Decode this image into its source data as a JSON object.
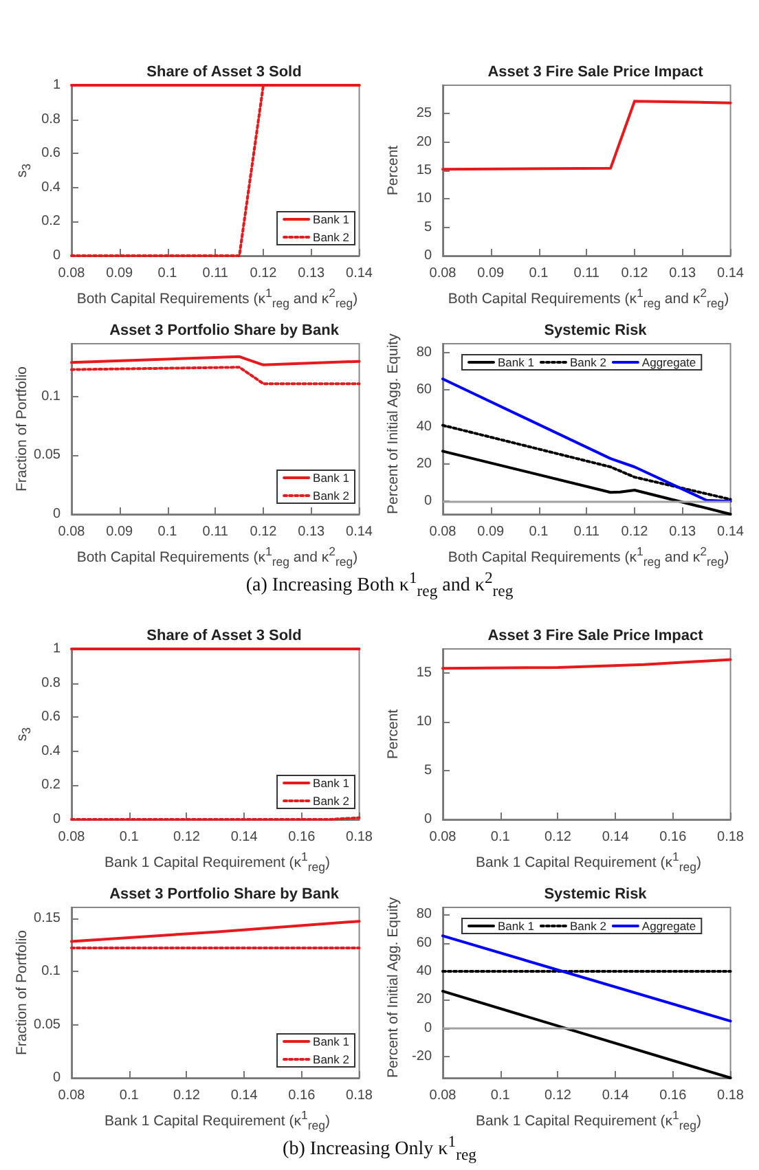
{
  "chart_data": [
    {
      "type": "line",
      "title": "Share of Asset 3 Sold",
      "xlabel": "Both Capital Requirements (κ$^{1}$$_{reg}$ and κ$^{2}$$_{reg}$)",
      "ylabel": "s$_{3}$",
      "xlim": [
        0.08,
        0.14
      ],
      "xticks": [
        0.08,
        0.09,
        0.1,
        0.11,
        0.12,
        0.13,
        0.14
      ],
      "ylim": [
        0,
        1
      ],
      "yticks": [
        0,
        0.2,
        0.4,
        0.6,
        0.8,
        1
      ],
      "marker": "none",
      "legend": "bottom right",
      "series": [
        {
          "name": "Bank 1",
          "color": "#e8191c",
          "line_style": "solid",
          "x": [
            0.08,
            0.115,
            0.12,
            0.14
          ],
          "values": [
            1,
            1,
            1,
            1
          ]
        },
        {
          "name": "Bank 2",
          "color": "#e8191c",
          "line_style": "dotted",
          "x": [
            0.08,
            0.115,
            0.12,
            0.14
          ],
          "values": [
            0,
            0,
            1,
            1
          ]
        }
      ]
    },
    {
      "type": "line",
      "title": "Asset 3 Fire Sale Price Impact",
      "xlabel": "Both Capital Requirements (κ$^{1}$$_{reg}$ and κ$^{2}$$_{reg}$)",
      "ylabel": "Percent",
      "xlim": [
        0.08,
        0.14
      ],
      "xticks": [
        0.08,
        0.09,
        0.1,
        0.11,
        0.12,
        0.13,
        0.14
      ],
      "ylim": [
        0,
        30
      ],
      "yticks": [
        0,
        5,
        10,
        15,
        20,
        25
      ],
      "marker": "none",
      "series": [
        {
          "color": "#e8191c",
          "line_style": "solid",
          "x": [
            0.08,
            0.115,
            0.12,
            0.14
          ],
          "values": [
            15.2,
            15.4,
            27.2,
            26.9
          ]
        }
      ]
    },
    {
      "type": "line",
      "title": "Asset 3 Portfolio Share by Bank",
      "xlabel": "Both Capital Requirements (κ$^{1}$$_{reg}$ and κ$^{2}$$_{reg}$)",
      "ylabel": "Fraction of Portfolio",
      "xlim": [
        0.08,
        0.14
      ],
      "xticks": [
        0.08,
        0.09,
        0.1,
        0.11,
        0.12,
        0.13,
        0.14
      ],
      "ylim": [
        0,
        0.145
      ],
      "yticks": [
        0,
        0.05,
        0.1
      ],
      "marker": "none",
      "legend": "bottom right",
      "series": [
        {
          "name": "Bank 1",
          "color": "#e8191c",
          "line_style": "solid",
          "x": [
            0.08,
            0.115,
            0.12,
            0.14
          ],
          "values": [
            0.129,
            0.134,
            0.127,
            0.13
          ]
        },
        {
          "name": "Bank 2",
          "color": "#e8191c",
          "line_style": "dotted",
          "x": [
            0.08,
            0.115,
            0.12,
            0.14
          ],
          "values": [
            0.123,
            0.125,
            0.111,
            0.111
          ]
        }
      ]
    },
    {
      "type": "line",
      "title": "Systemic Risk",
      "xlabel": "Both Capital Requirements (κ$^{1}$$_{reg}$ and κ$^{2}$$_{reg}$)",
      "ylabel": "Percent of Initial Agg. Equity",
      "xlim": [
        0.08,
        0.14
      ],
      "xticks": [
        0.08,
        0.09,
        0.1,
        0.11,
        0.12,
        0.13,
        0.14
      ],
      "ylim": [
        -7,
        85
      ],
      "yticks": [
        0,
        20,
        40,
        60,
        80
      ],
      "marker": "none",
      "legend": "top",
      "ref_lines": [
        {
          "axis": "y",
          "value": 0,
          "color": "#a0a0a0"
        }
      ],
      "annotations": [
        "(a) Increasing Both κ$^{1}$$_{reg}$ and κ$^{2}$$_{reg}$"
      ],
      "series": [
        {
          "name": "Bank 1",
          "color": "#000000",
          "line_style": "solid",
          "x": [
            0.08,
            0.115,
            0.117,
            0.12,
            0.14
          ],
          "values": [
            27,
            4.8,
            5,
            6,
            -7
          ]
        },
        {
          "name": "Bank 2",
          "color": "#000000",
          "line_style": "dotted",
          "x": [
            0.08,
            0.115,
            0.12,
            0.13,
            0.14
          ],
          "values": [
            41,
            18.5,
            13,
            7,
            1
          ]
        },
        {
          "name": "Aggregate",
          "color": "#0000ff",
          "line_style": "solid",
          "x": [
            0.08,
            0.115,
            0.12,
            0.13,
            0.135,
            0.14
          ],
          "values": [
            66,
            23,
            18.5,
            6.5,
            0.5,
            0
          ]
        }
      ]
    },
    {
      "type": "line",
      "title": "Share of Asset 3 Sold",
      "xlabel": "Bank 1 Capital Requirement (κ$^{1}$$_{reg}$)",
      "ylabel": "s$_{3}$",
      "xlim": [
        0.08,
        0.18
      ],
      "xticks": [
        0.08,
        0.1,
        0.12,
        0.14,
        0.16,
        0.18
      ],
      "ylim": [
        0,
        1
      ],
      "yticks": [
        0,
        0.2,
        0.4,
        0.6,
        0.8,
        1
      ],
      "marker": "none",
      "legend": "bottom right",
      "series": [
        {
          "name": "Bank 1",
          "color": "#e8191c",
          "line_style": "solid",
          "x": [
            0.08,
            0.18
          ],
          "values": [
            1,
            1
          ]
        },
        {
          "name": "Bank 2",
          "color": "#e8191c",
          "line_style": "dotted",
          "x": [
            0.08,
            0.17,
            0.18
          ],
          "values": [
            0,
            0,
            0.01
          ]
        }
      ]
    },
    {
      "type": "line",
      "title": "Asset 3 Fire Sale Price Impact",
      "xlabel": "Bank 1 Capital Requirement (κ$^{1}$$_{reg}$)",
      "ylabel": "Percent",
      "xlim": [
        0.08,
        0.18
      ],
      "xticks": [
        0.08,
        0.1,
        0.12,
        0.14,
        0.16,
        0.18
      ],
      "ylim": [
        0,
        17.5
      ],
      "yticks": [
        0,
        5,
        10,
        15
      ],
      "marker": "none",
      "series": [
        {
          "color": "#e8191c",
          "line_style": "solid",
          "x": [
            0.08,
            0.12,
            0.15,
            0.18
          ],
          "values": [
            15.5,
            15.6,
            15.9,
            16.4
          ]
        }
      ]
    },
    {
      "type": "line",
      "title": "Asset 3 Portfolio Share by Bank",
      "xlabel": "Bank 1 Capital Requirement (κ$^{1}$$_{reg}$)",
      "ylabel": "Fraction of Portfolio",
      "xlim": [
        0.08,
        0.18
      ],
      "xticks": [
        0.08,
        0.1,
        0.12,
        0.14,
        0.16,
        0.18
      ],
      "ylim": [
        0,
        0.16
      ],
      "yticks": [
        0,
        0.05,
        0.1,
        0.15
      ],
      "marker": "none",
      "legend": "bottom right",
      "series": [
        {
          "name": "Bank 1",
          "color": "#e8191c",
          "line_style": "solid",
          "x": [
            0.08,
            0.13,
            0.18
          ],
          "values": [
            0.128,
            0.137,
            0.147
          ]
        },
        {
          "name": "Bank 2",
          "color": "#e8191c",
          "line_style": "dotted",
          "x": [
            0.08,
            0.18
          ],
          "values": [
            0.122,
            0.122
          ]
        }
      ]
    },
    {
      "type": "line",
      "title": "Systemic Risk",
      "xlabel": "Bank 1 Capital Requirement (κ$^{1}$$_{reg}$)",
      "ylabel": "Percent of Initial Agg. Equity",
      "xlim": [
        0.08,
        0.18
      ],
      "xticks": [
        0.08,
        0.1,
        0.12,
        0.14,
        0.16,
        0.18
      ],
      "ylim": [
        -35,
        85
      ],
      "yticks": [
        -20,
        0,
        20,
        40,
        60,
        80
      ],
      "marker": "none",
      "legend": "top",
      "ref_lines": [
        {
          "axis": "y",
          "value": 0,
          "color": "#a0a0a0"
        }
      ],
      "annotations": [
        "(b) Increasing Only κ$^{1}$$_{reg}$"
      ],
      "series": [
        {
          "name": "Bank 1",
          "color": "#000000",
          "line_style": "solid",
          "x": [
            0.08,
            0.18
          ],
          "values": [
            26,
            -35
          ]
        },
        {
          "name": "Bank 2",
          "color": "#000000",
          "line_style": "dotted",
          "x": [
            0.08,
            0.18
          ],
          "values": [
            40,
            40
          ]
        },
        {
          "name": "Aggregate",
          "color": "#0000ff",
          "line_style": "solid",
          "x": [
            0.08,
            0.18
          ],
          "values": [
            65,
            5
          ]
        }
      ]
    }
  ]
}
